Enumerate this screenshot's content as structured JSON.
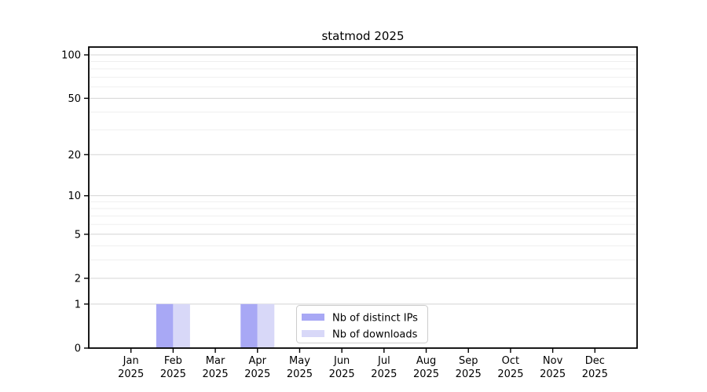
{
  "figure": {
    "background": "#ffffff"
  },
  "chart_data": {
    "type": "bar",
    "title": "statmod 2025",
    "x": {
      "categories": [
        "Jan",
        "Feb",
        "Mar",
        "Apr",
        "May",
        "Jun",
        "Jul",
        "Aug",
        "Sep",
        "Oct",
        "Nov",
        "Dec"
      ],
      "year": "2025"
    },
    "series": [
      {
        "name": "Nb of distinct IPs",
        "color": "#a8a8f5",
        "values": [
          0,
          1,
          0,
          1,
          0,
          0,
          0,
          0,
          0,
          0,
          0,
          0
        ]
      },
      {
        "name": "Nb of downloads",
        "color": "#d8d8f8",
        "values": [
          0,
          1,
          0,
          1,
          0,
          0,
          0,
          0,
          0,
          0,
          0,
          0
        ]
      }
    ],
    "y_axis": {
      "scale": "log1p",
      "major_ticks": [
        0,
        1,
        2,
        5,
        10,
        20,
        50,
        100
      ],
      "minor_ticks": [
        3,
        4,
        6,
        7,
        8,
        9,
        30,
        40,
        60,
        70,
        80,
        90
      ],
      "ylim": [
        0,
        114
      ]
    },
    "grid": {
      "major_color": "#d4d4d4",
      "minor_color": "#efefef"
    },
    "legend": {
      "position": "inside-bottom-center",
      "background": "#ffffff",
      "border_color": "#cccccc"
    },
    "axis_color": "#000000"
  }
}
